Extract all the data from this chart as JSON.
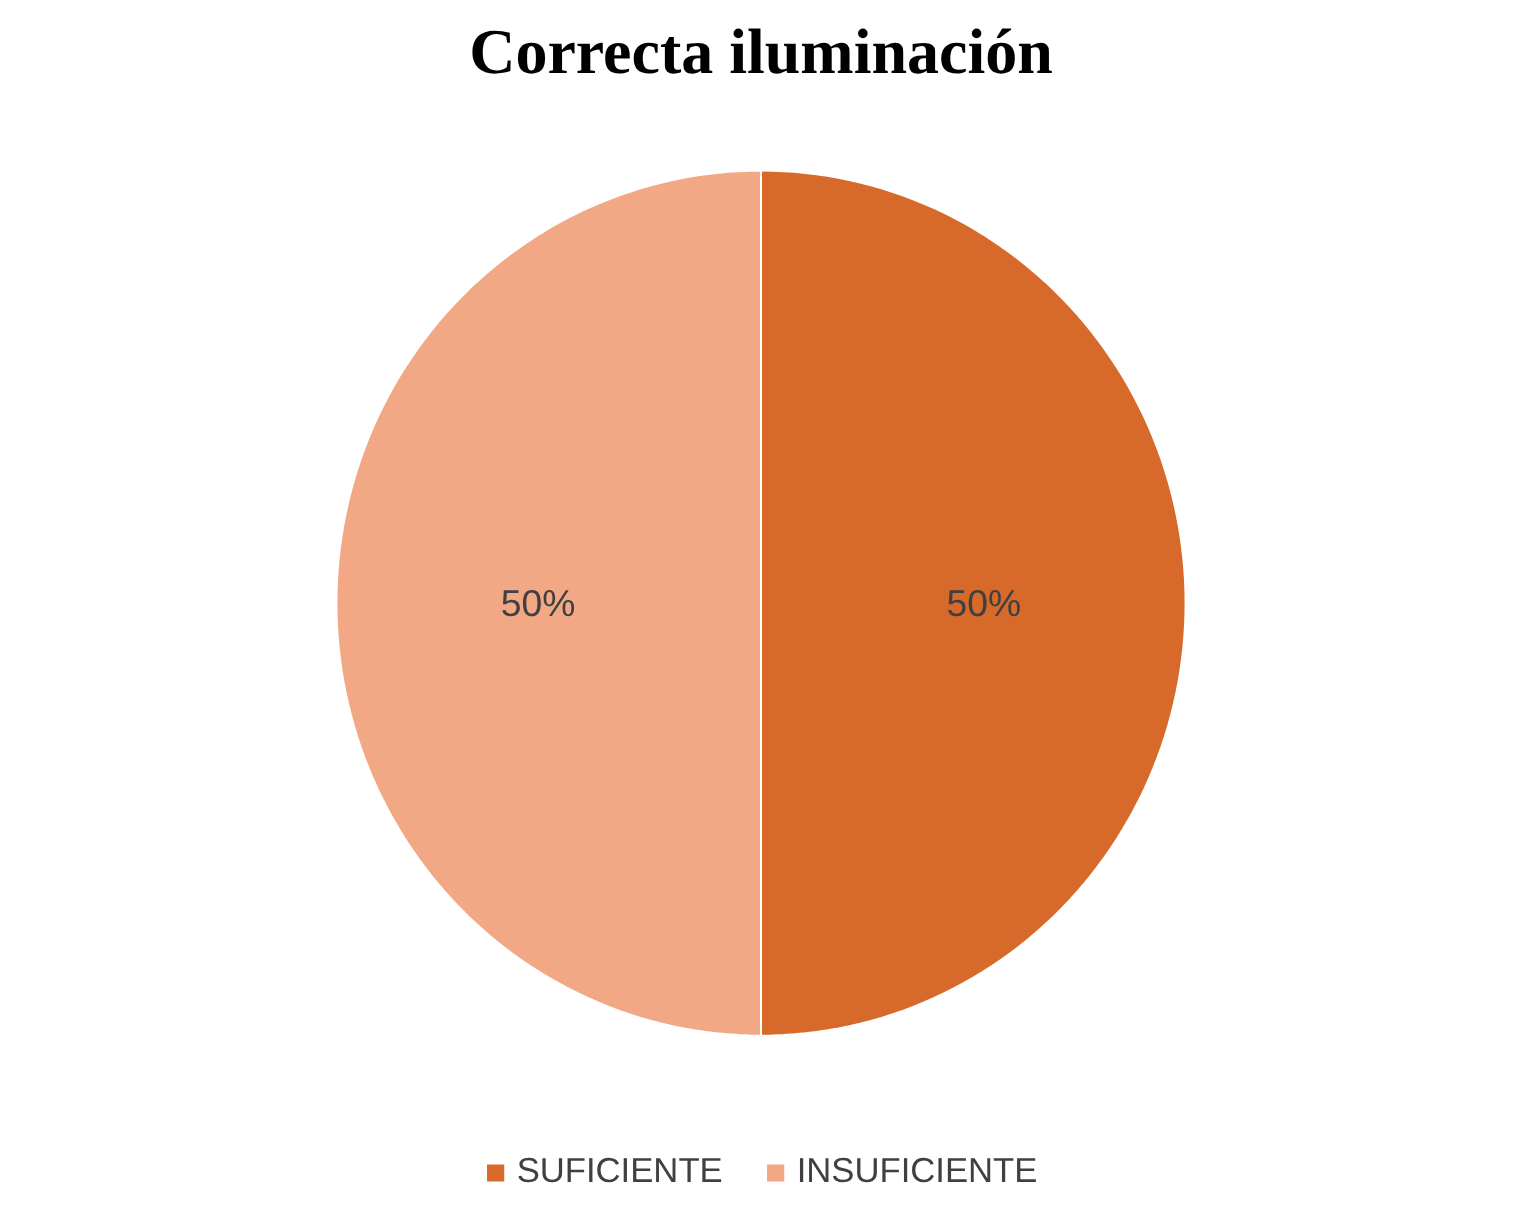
{
  "chart_data": {
    "type": "pie",
    "title": "Correcta iluminación",
    "categories": [
      "SUFICIENTE",
      "INSUFICIENTE"
    ],
    "values": [
      50,
      50
    ],
    "colors": [
      "#d7692a",
      "#f2a785"
    ],
    "value_labels": [
      "50%",
      "50%"
    ],
    "legend": "bottom"
  }
}
